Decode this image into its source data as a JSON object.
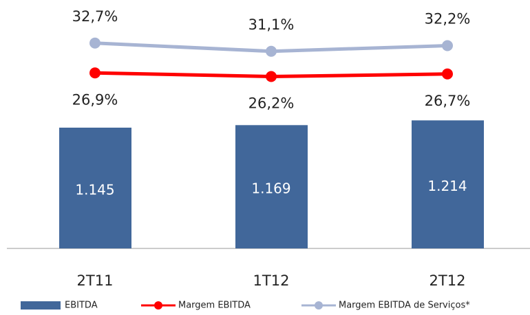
{
  "chart_data": {
    "type": "bar_line",
    "categories": [
      "2T11",
      "1T12",
      "2T12"
    ],
    "ylim": [
      0,
      2225
    ],
    "y2lim": [
      -7.2,
      38.4
    ],
    "series": [
      {
        "name": "EBITDA",
        "type": "bar",
        "color": "#41679a",
        "values": [
          1145,
          1169,
          1214
        ],
        "value_labels": [
          "1.145",
          "1.169",
          "1.214"
        ]
      },
      {
        "name": "Margem EBITDA",
        "type": "line",
        "axis": "y2",
        "color": "#ff0000",
        "values": [
          26.9,
          26.2,
          26.7
        ],
        "value_labels": [
          "26,9%",
          "26,2%",
          "26,7%"
        ]
      },
      {
        "name": "Margem EBITDA de Serviços*",
        "type": "line",
        "axis": "y2",
        "color": "#a7b4d3",
        "values": [
          32.7,
          31.1,
          32.2
        ],
        "value_labels": [
          "32,7%",
          "31,1%",
          "32,2%"
        ]
      }
    ]
  }
}
